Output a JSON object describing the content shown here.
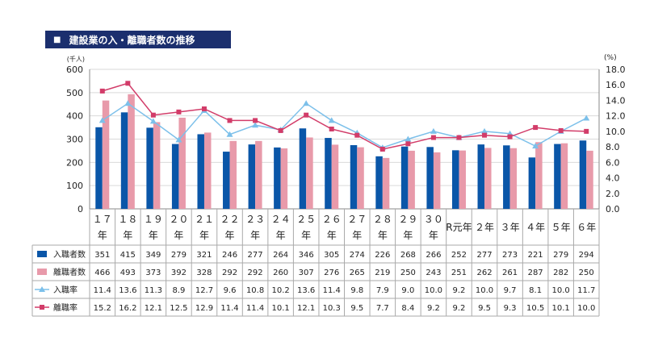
{
  "header": {
    "title": "建設業の入・離職者数の推移"
  },
  "chart_data": {
    "type": "bar",
    "title": "建設業の入・離職者数の推移",
    "y_left_unit": "(千人)",
    "y_right_unit": "(%)",
    "y_left_range": [
      0,
      600
    ],
    "y_left_ticks": [
      "0",
      "100",
      "200",
      "300",
      "400",
      "500",
      "600"
    ],
    "y_right_range": [
      0,
      18
    ],
    "y_right_ticks": [
      "0.0",
      "2.0",
      "4.0",
      "6.0",
      "8.0",
      "10.0",
      "12.0",
      "14.0",
      "16.0",
      "18.0"
    ],
    "categories": [
      "１７\n年",
      "１８\n年",
      "１９\n年",
      "２０\n年",
      "２１\n年",
      "２２\n年",
      "２３\n年",
      "２４\n年",
      "２５\n年",
      "２６\n年",
      "２７\n年",
      "２８\n年",
      "２９\n年",
      "３０\n年",
      "R元年",
      "２年",
      "３年",
      "４年",
      "５年",
      "６年"
    ],
    "grid": true,
    "legend": "table-left",
    "series": [
      {
        "name": "入職者数",
        "type": "bar",
        "axis": "left",
        "color": "#0a56a8",
        "values": [
          351,
          415,
          349,
          279,
          321,
          246,
          277,
          264,
          346,
          305,
          274,
          226,
          268,
          266,
          252,
          277,
          273,
          221,
          279,
          294
        ]
      },
      {
        "name": "離職者数",
        "type": "bar",
        "axis": "left",
        "color": "#e89aaa",
        "values": [
          466,
          493,
          373,
          392,
          328,
          292,
          292,
          260,
          307,
          276,
          265,
          219,
          250,
          243,
          251,
          262,
          261,
          287,
          282,
          250
        ]
      },
      {
        "name": "入職率",
        "type": "line",
        "axis": "right",
        "color": "#7cc0ea",
        "marker": "triangle",
        "values": [
          11.4,
          13.6,
          11.3,
          8.9,
          12.7,
          9.6,
          10.8,
          10.2,
          13.6,
          11.4,
          9.8,
          7.9,
          9.0,
          10.0,
          9.2,
          10.0,
          9.7,
          8.1,
          10.0,
          11.7
        ]
      },
      {
        "name": "離職率",
        "type": "line",
        "axis": "right",
        "color": "#d23c69",
        "marker": "square",
        "values": [
          15.2,
          16.2,
          12.1,
          12.5,
          12.9,
          11.4,
          11.4,
          10.1,
          12.1,
          10.3,
          9.5,
          7.7,
          8.4,
          9.2,
          9.2,
          9.5,
          9.3,
          10.5,
          10.1,
          10.0
        ]
      }
    ],
    "table_rows": [
      [
        "351",
        "415",
        "349",
        "279",
        "321",
        "246",
        "277",
        "264",
        "346",
        "305",
        "274",
        "226",
        "268",
        "266",
        "252",
        "277",
        "273",
        "221",
        "279",
        "294"
      ],
      [
        "466",
        "493",
        "373",
        "392",
        "328",
        "292",
        "292",
        "260",
        "307",
        "276",
        "265",
        "219",
        "250",
        "243",
        "251",
        "262",
        "261",
        "287",
        "282",
        "250"
      ],
      [
        "11.4",
        "13.6",
        "11.3",
        "8.9",
        "12.7",
        "9.6",
        "10.8",
        "10.2",
        "13.6",
        "11.4",
        "9.8",
        "7.9",
        "9.0",
        "10.0",
        "9.2",
        "10.0",
        "9.7",
        "8.1",
        "10.0",
        "11.7"
      ],
      [
        "15.2",
        "16.2",
        "12.1",
        "12.5",
        "12.9",
        "11.4",
        "11.4",
        "10.1",
        "12.1",
        "10.3",
        "9.5",
        "7.7",
        "8.4",
        "9.2",
        "9.2",
        "9.5",
        "9.3",
        "10.5",
        "10.1",
        "10.0"
      ]
    ]
  }
}
